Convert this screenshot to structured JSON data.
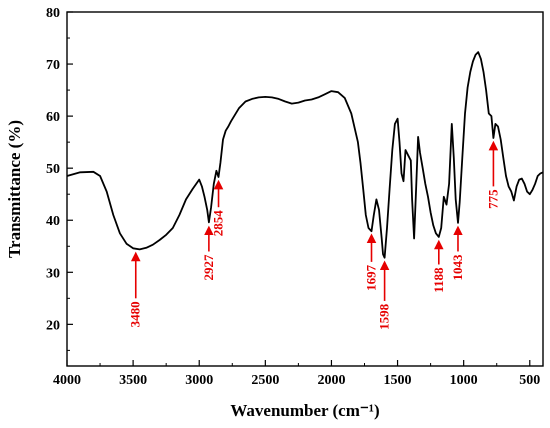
{
  "chart_data": {
    "type": "line",
    "xlabel": "Wavenumber (cm⁻¹)",
    "ylabel": "Transmittance (%)",
    "xlim": [
      4000,
      400
    ],
    "ylim": [
      12,
      80
    ],
    "x_reversed": true,
    "x_ticks": [
      "4000",
      "3500",
      "3000",
      "2500",
      "2000",
      "1500",
      "1000",
      "500"
    ],
    "y_ticks": [
      "20",
      "30",
      "40",
      "50",
      "60",
      "70",
      "80"
    ],
    "line_color": "#000000",
    "annotation_color": "#e60000",
    "series": [
      {
        "x": [
          4000,
          3900,
          3800,
          3750,
          3700,
          3650,
          3600,
          3550,
          3500,
          3450,
          3400,
          3350,
          3300,
          3250,
          3200,
          3150,
          3100,
          3050,
          3000,
          2980,
          2960,
          2940,
          2927,
          2910,
          2890,
          2870,
          2854,
          2840,
          2820,
          2800,
          2780,
          2760,
          2700,
          2650,
          2600,
          2550,
          2500,
          2450,
          2400,
          2350,
          2300,
          2250,
          2200,
          2150,
          2100,
          2050,
          2000,
          1950,
          1900,
          1850,
          1800,
          1780,
          1760,
          1740,
          1720,
          1697,
          1680,
          1660,
          1640,
          1620,
          1610,
          1598,
          1580,
          1560,
          1540,
          1520,
          1500,
          1485,
          1470,
          1455,
          1440,
          1420,
          1400,
          1390,
          1375,
          1360,
          1345,
          1330,
          1310,
          1290,
          1270,
          1250,
          1230,
          1210,
          1188,
          1170,
          1150,
          1130,
          1110,
          1090,
          1075,
          1060,
          1043,
          1030,
          1010,
          990,
          970,
          950,
          930,
          910,
          890,
          870,
          850,
          830,
          810,
          790,
          775,
          760,
          740,
          720,
          700,
          680,
          660,
          640,
          620,
          600,
          580,
          560,
          540,
          520,
          500,
          480,
          460,
          440,
          420,
          400
        ],
        "y": [
          48.5,
          49.2,
          49.3,
          48.5,
          45.5,
          41.0,
          37.5,
          35.5,
          34.6,
          34.4,
          34.7,
          35.3,
          36.2,
          37.2,
          38.5,
          41.0,
          44.0,
          46.0,
          47.8,
          46.5,
          44.5,
          42.0,
          39.6,
          42.5,
          47.0,
          49.5,
          48.3,
          51.0,
          55.5,
          57.2,
          58.0,
          59.0,
          61.5,
          62.8,
          63.3,
          63.6,
          63.7,
          63.6,
          63.3,
          62.8,
          62.4,
          62.6,
          63.0,
          63.2,
          63.6,
          64.2,
          64.8,
          64.6,
          63.5,
          60.5,
          55.0,
          51.0,
          46.0,
          41.0,
          38.5,
          37.9,
          41.0,
          44.0,
          42.0,
          36.5,
          33.5,
          32.8,
          38.5,
          46.0,
          53.5,
          58.5,
          59.5,
          55.0,
          49.0,
          47.5,
          53.5,
          52.5,
          51.5,
          44.0,
          36.5,
          46.0,
          56.0,
          53.0,
          50.0,
          47.0,
          44.5,
          41.5,
          39.0,
          37.5,
          36.8,
          38.5,
          44.5,
          43.0,
          47.0,
          58.5,
          52.0,
          44.0,
          39.5,
          43.5,
          52.0,
          60.5,
          65.5,
          68.5,
          70.5,
          71.8,
          72.3,
          71.0,
          68.5,
          65.0,
          60.5,
          60.0,
          55.8,
          58.5,
          58.0,
          55.5,
          52.0,
          48.5,
          46.5,
          45.5,
          43.8,
          46.5,
          47.8,
          48.0,
          47.0,
          45.5,
          45.0,
          45.8,
          47.0,
          48.5,
          49.0,
          49.2
        ]
      }
    ],
    "annotations": [
      {
        "label": "3480",
        "x": 3480,
        "y_tip": 34.0,
        "y_tail": 25.0
      },
      {
        "label": "2927",
        "x": 2927,
        "y_tip": 39.0,
        "y_tail": 34.0
      },
      {
        "label": "2854",
        "x": 2854,
        "y_tip": 47.8,
        "y_tail": 42.5
      },
      {
        "label": "1697",
        "x": 1697,
        "y_tip": 37.5,
        "y_tail": 32.0
      },
      {
        "label": "1598",
        "x": 1598,
        "y_tip": 32.3,
        "y_tail": 24.5
      },
      {
        "label": "1188",
        "x": 1188,
        "y_tip": 36.3,
        "y_tail": 31.5
      },
      {
        "label": "1043",
        "x": 1043,
        "y_tip": 39.0,
        "y_tail": 34.0
      },
      {
        "label": "775",
        "x": 775,
        "y_tip": 55.3,
        "y_tail": 46.5
      }
    ]
  }
}
